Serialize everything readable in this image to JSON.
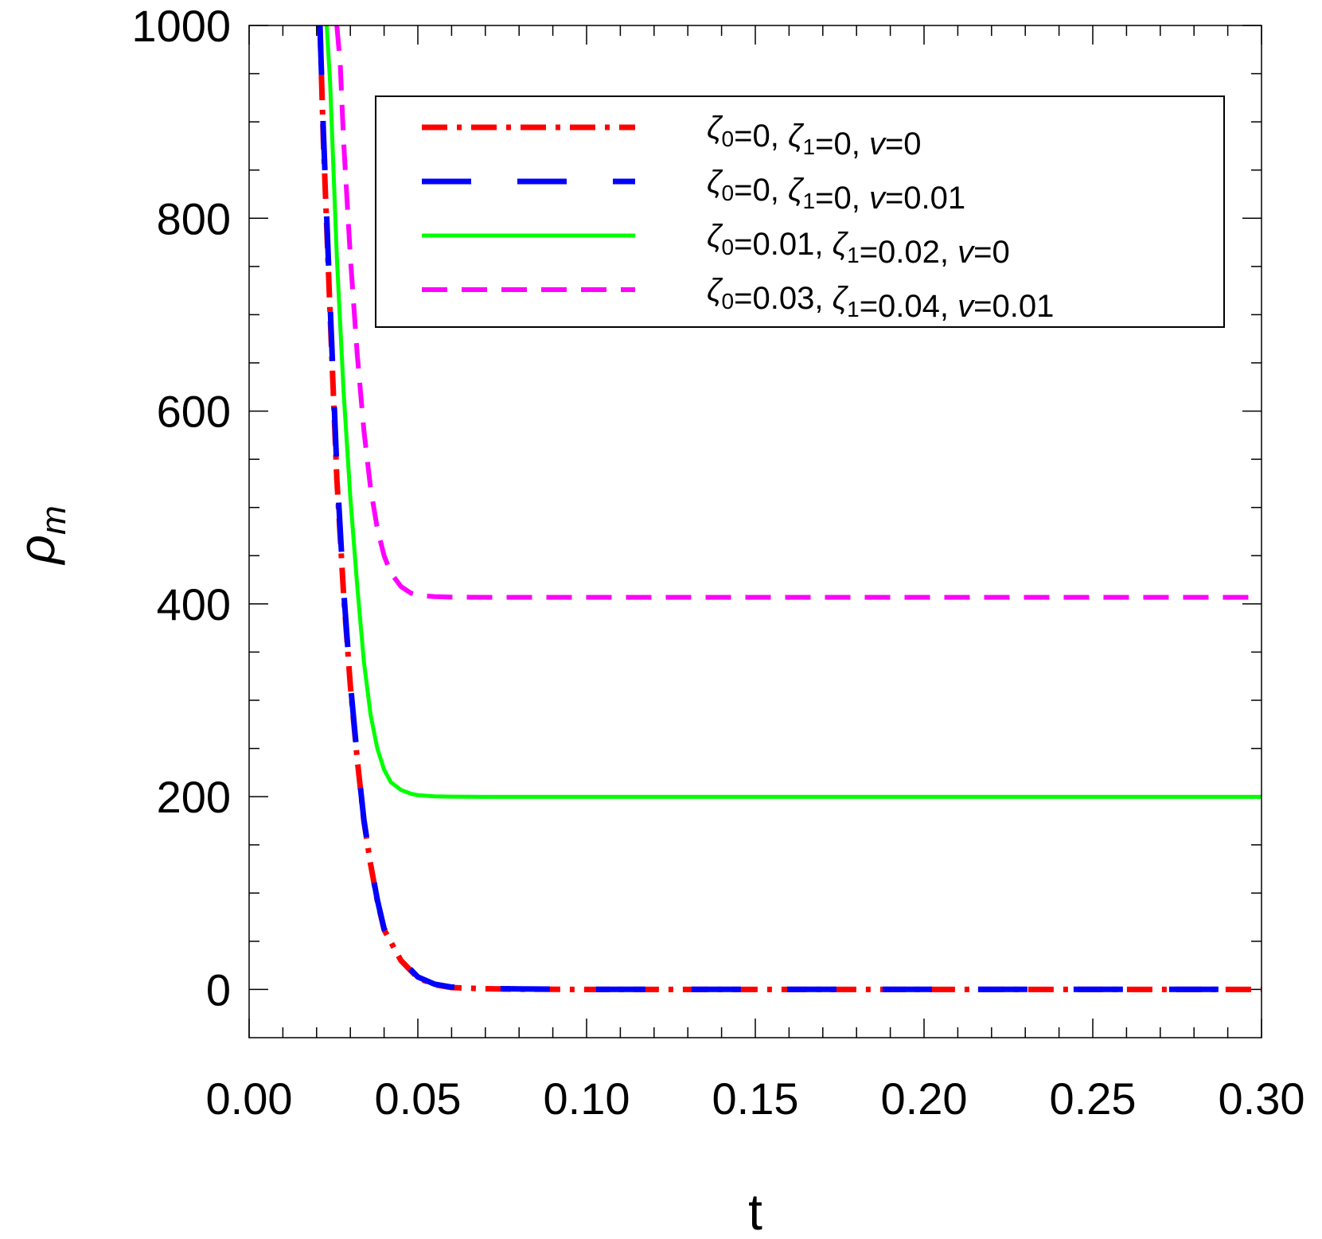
{
  "chart_data": {
    "type": "line",
    "xlabel": "t",
    "ylabel": "ρ",
    "ylabel_sub": "m",
    "xlim": [
      0,
      0.3
    ],
    "ylim": [
      -50,
      1000
    ],
    "xticks": [
      0.0,
      0.05,
      0.1,
      0.15,
      0.2,
      0.25,
      0.3
    ],
    "xtick_labels": [
      "0.00",
      "0.05",
      "0.10",
      "0.15",
      "0.20",
      "0.25",
      "0.30"
    ],
    "yticks": [
      0,
      200,
      400,
      600,
      800,
      1000
    ],
    "ytick_labels": [
      "0",
      "200",
      "400",
      "600",
      "800",
      "1000"
    ],
    "grid": false,
    "legend_position": "top-right",
    "series": [
      {
        "legend": {
          "z0": "0",
          "z1": "0",
          "v": "0"
        },
        "color": "#ff0000",
        "style": "dash-dot",
        "x": [
          0.021,
          0.022,
          0.024,
          0.026,
          0.028,
          0.03,
          0.032,
          0.034,
          0.036,
          0.038,
          0.04,
          0.045,
          0.05,
          0.055,
          0.06,
          0.07,
          0.08,
          0.1,
          0.15,
          0.2,
          0.25,
          0.3
        ],
        "y": [
          1000,
          880,
          700,
          530,
          410,
          315,
          240,
          175,
          130,
          92,
          62,
          30,
          12,
          5,
          2,
          0.8,
          0.3,
          0,
          0,
          0,
          0,
          0
        ]
      },
      {
        "legend": {
          "z0": "0",
          "z1": "0",
          "v": "0.01"
        },
        "color": "#0000ff",
        "style": "long-dash",
        "x": [
          0.021,
          0.022,
          0.024,
          0.026,
          0.028,
          0.03,
          0.032,
          0.034,
          0.036,
          0.038,
          0.04,
          0.045,
          0.05,
          0.055,
          0.06,
          0.07,
          0.08,
          0.1,
          0.15,
          0.2,
          0.25,
          0.3
        ],
        "y": [
          1000,
          890,
          710,
          540,
          415,
          318,
          242,
          176,
          131,
          93,
          63,
          31,
          13,
          5.5,
          2.5,
          1,
          0.5,
          0.2,
          0.2,
          0.2,
          0.2,
          0.2
        ]
      },
      {
        "legend": {
          "z0": "0.01",
          "z1": "0.02",
          "v": "0"
        },
        "color": "#00ff00",
        "style": "solid",
        "x": [
          0.023,
          0.024,
          0.026,
          0.028,
          0.03,
          0.032,
          0.034,
          0.036,
          0.038,
          0.04,
          0.042,
          0.045,
          0.048,
          0.05,
          0.055,
          0.06,
          0.07,
          0.08,
          0.1,
          0.15,
          0.2,
          0.25,
          0.3
        ],
        "y": [
          1000,
          940,
          760,
          620,
          510,
          420,
          340,
          285,
          250,
          228,
          215,
          207,
          203,
          201.5,
          200.3,
          200,
          199.8,
          199.8,
          199.8,
          199.8,
          199.8,
          199.8,
          199.8
        ]
      },
      {
        "legend": {
          "z0": "0.03",
          "z1": "0.04",
          "v": "0.01"
        },
        "color": "#ff00ff",
        "style": "dashed",
        "x": [
          0.026,
          0.027,
          0.028,
          0.03,
          0.032,
          0.034,
          0.036,
          0.038,
          0.04,
          0.042,
          0.045,
          0.048,
          0.05,
          0.055,
          0.06,
          0.07,
          0.08,
          0.1,
          0.15,
          0.2,
          0.25,
          0.3
        ],
        "y": [
          1000,
          960,
          880,
          760,
          660,
          580,
          520,
          478,
          450,
          432,
          418,
          411,
          409,
          407.5,
          407,
          406.8,
          406.8,
          406.8,
          406.8,
          406.8,
          406.8,
          406.8
        ]
      }
    ]
  }
}
